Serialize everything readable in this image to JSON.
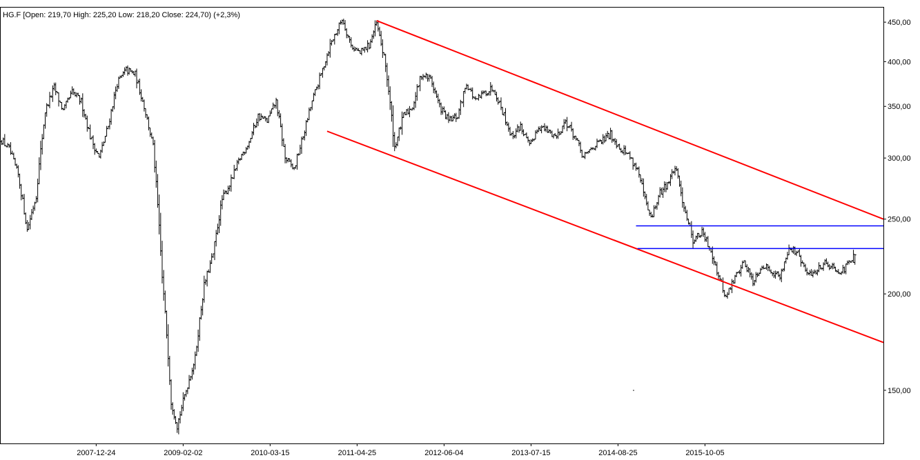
{
  "header": {
    "info": "HG.F [Open: 219,70  High: 225,20  Low: 218,20  Close: 224,70) (+2,3%)"
  },
  "chart_data": {
    "type": "ohlc",
    "y_scale": "log",
    "grid": false,
    "legend": "none",
    "x_range": [
      "2006-10-01",
      "2018-01-15"
    ],
    "y_range": [
      128,
      470
    ],
    "x_ticks": [
      "2007-12-24",
      "2009-02-02",
      "2010-03-15",
      "2011-04-25",
      "2012-06-04",
      "2013-07-15",
      "2014-08-25",
      "2015-10-05"
    ],
    "y_ticks": [
      {
        "value": 150,
        "label": "150,00"
      },
      {
        "value": 200,
        "label": "200,00"
      },
      {
        "value": 250,
        "label": "250,00"
      },
      {
        "value": 300,
        "label": "300,00"
      },
      {
        "value": 350,
        "label": "350,00"
      },
      {
        "value": 400,
        "label": "400,00"
      },
      {
        "value": 450,
        "label": "450,00"
      }
    ],
    "last_bar": {
      "open": 219.7,
      "high": 225.2,
      "low": 218.2,
      "close": 224.7,
      "change_pct": 2.3
    },
    "price_path": [
      [
        "2006-10-02",
        318
      ],
      [
        "2006-11-13",
        308
      ],
      [
        "2006-12-25",
        285
      ],
      [
        "2007-02-05",
        242
      ],
      [
        "2007-03-19",
        268
      ],
      [
        "2007-04-30",
        345
      ],
      [
        "2007-06-11",
        370
      ],
      [
        "2007-07-23",
        345
      ],
      [
        "2007-09-03",
        365
      ],
      [
        "2007-10-15",
        355
      ],
      [
        "2007-11-26",
        320
      ],
      [
        "2008-01-07",
        300
      ],
      [
        "2008-02-18",
        330
      ],
      [
        "2008-03-31",
        375
      ],
      [
        "2008-05-12",
        390
      ],
      [
        "2008-06-23",
        385
      ],
      [
        "2008-08-04",
        350
      ],
      [
        "2008-09-15",
        310
      ],
      [
        "2008-10-27",
        210
      ],
      [
        "2008-12-08",
        145
      ],
      [
        "2009-01-05",
        135
      ],
      [
        "2009-02-16",
        150
      ],
      [
        "2009-03-30",
        165
      ],
      [
        "2009-05-11",
        205
      ],
      [
        "2009-06-22",
        225
      ],
      [
        "2009-08-03",
        265
      ],
      [
        "2009-09-14",
        280
      ],
      [
        "2009-10-26",
        300
      ],
      [
        "2009-12-07",
        315
      ],
      [
        "2010-01-18",
        340
      ],
      [
        "2010-03-01",
        335
      ],
      [
        "2010-04-12",
        355
      ],
      [
        "2010-05-24",
        300
      ],
      [
        "2010-07-05",
        290
      ],
      [
        "2010-08-16",
        320
      ],
      [
        "2010-09-27",
        355
      ],
      [
        "2010-11-08",
        385
      ],
      [
        "2010-12-20",
        420
      ],
      [
        "2011-01-31",
        445
      ],
      [
        "2011-02-14",
        455
      ],
      [
        "2011-03-28",
        420
      ],
      [
        "2011-05-09",
        410
      ],
      [
        "2011-06-20",
        420
      ],
      [
        "2011-07-25",
        448
      ],
      [
        "2011-09-05",
        395
      ],
      [
        "2011-10-17",
        310
      ],
      [
        "2011-11-28",
        340
      ],
      [
        "2012-01-09",
        350
      ],
      [
        "2012-02-20",
        385
      ],
      [
        "2012-04-02",
        380
      ],
      [
        "2012-05-14",
        350
      ],
      [
        "2012-06-25",
        335
      ],
      [
        "2012-08-06",
        340
      ],
      [
        "2012-09-17",
        375
      ],
      [
        "2012-10-29",
        355
      ],
      [
        "2012-12-10",
        365
      ],
      [
        "2013-01-21",
        370
      ],
      [
        "2013-03-04",
        345
      ],
      [
        "2013-04-15",
        320
      ],
      [
        "2013-05-27",
        330
      ],
      [
        "2013-07-08",
        310
      ],
      [
        "2013-08-19",
        330
      ],
      [
        "2013-09-30",
        325
      ],
      [
        "2013-11-11",
        320
      ],
      [
        "2013-12-23",
        335
      ],
      [
        "2014-02-03",
        320
      ],
      [
        "2014-03-17",
        300
      ],
      [
        "2014-04-28",
        310
      ],
      [
        "2014-06-09",
        315
      ],
      [
        "2014-07-21",
        322
      ],
      [
        "2014-09-01",
        310
      ],
      [
        "2014-10-13",
        303
      ],
      [
        "2014-11-24",
        290
      ],
      [
        "2015-01-05",
        260
      ],
      [
        "2015-01-26",
        250
      ],
      [
        "2015-03-09",
        270
      ],
      [
        "2015-04-20",
        280
      ],
      [
        "2015-05-18",
        292
      ],
      [
        "2015-06-29",
        260
      ],
      [
        "2015-08-10",
        235
      ],
      [
        "2015-09-21",
        240
      ],
      [
        "2015-11-02",
        228
      ],
      [
        "2015-12-14",
        208
      ],
      [
        "2016-01-11",
        198
      ],
      [
        "2016-02-22",
        210
      ],
      [
        "2016-04-04",
        220
      ],
      [
        "2016-05-16",
        208
      ],
      [
        "2016-06-27",
        218
      ],
      [
        "2016-08-08",
        215
      ],
      [
        "2016-09-19",
        210
      ],
      [
        "2016-10-31",
        230
      ],
      [
        "2016-12-12",
        225
      ],
      [
        "2017-01-23",
        212
      ],
      [
        "2017-03-06",
        214
      ],
      [
        "2017-04-17",
        220
      ],
      [
        "2017-05-29",
        216
      ],
      [
        "2017-07-10",
        214
      ],
      [
        "2017-08-21",
        222
      ],
      [
        "2017-09-04",
        224.7
      ]
    ],
    "annotations": [
      {
        "type": "trendline",
        "color": "#ff0000",
        "from": [
          "2011-07-25",
          452
        ],
        "to": [
          "2018-01-15",
          250
        ]
      },
      {
        "type": "trendline",
        "color": "#ff0000",
        "from": [
          "2010-12-06",
          325
        ],
        "to": [
          "2018-01-15",
          173
        ]
      },
      {
        "type": "hline",
        "color": "#0000ff",
        "value": 245,
        "from": "2014-11-17",
        "to": "2018-01-15"
      },
      {
        "type": "hline",
        "color": "#0000ff",
        "value": 229,
        "from": "2014-11-24",
        "to": "2018-01-15"
      }
    ]
  }
}
